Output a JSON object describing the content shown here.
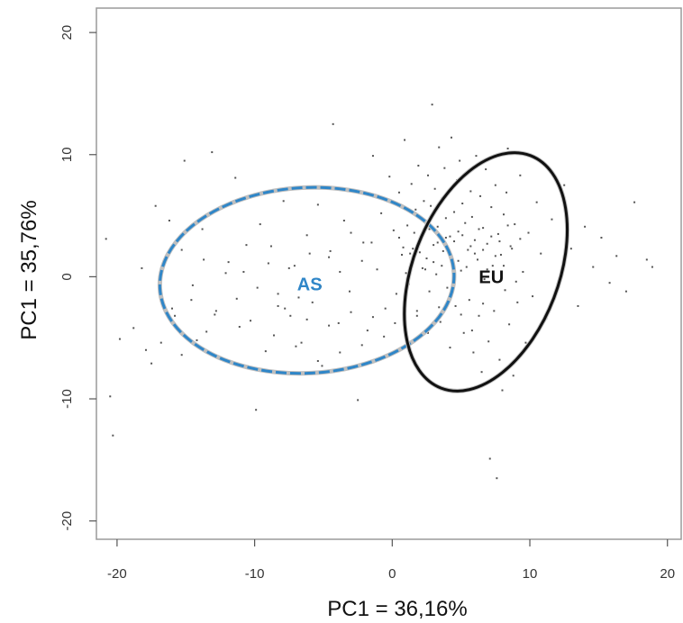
{
  "chart_data": {
    "type": "scatter",
    "title": "",
    "xlabel": "PC1 = 36,16%",
    "ylabel": "PC1 = 35,76%",
    "xlim": [
      -21.5,
      21
    ],
    "ylim": [
      -21.5,
      22
    ],
    "x_ticks": [
      -20,
      -10,
      0,
      10,
      20
    ],
    "y_ticks": [
      -20,
      -10,
      0,
      10,
      20
    ],
    "x_tick_labels": [
      "-20",
      "-10",
      "0",
      "10",
      "20"
    ],
    "y_tick_labels": [
      "-20",
      "-10",
      "0",
      "10",
      "20"
    ],
    "grid": false,
    "point_color": "#555555",
    "groups": [
      {
        "label": "AS",
        "color": "#2f86c8",
        "style": "dashed",
        "center": [
          -6.2,
          -0.3
        ],
        "rx": 10.7,
        "ry": 7.6,
        "rotation_deg": -3,
        "label_pos": [
          -6,
          -0.6
        ]
      },
      {
        "label": "EU",
        "color": "#111111",
        "style": "solid",
        "center": [
          6.8,
          0.4
        ],
        "rx": 5.3,
        "ry": 10.2,
        "rotation_deg": 21,
        "label_pos": [
          7.2,
          0
        ]
      }
    ],
    "points": [
      [
        -20.8,
        3.1
      ],
      [
        -20.5,
        -9.8
      ],
      [
        -20.3,
        -13
      ],
      [
        -19.8,
        -5.1
      ],
      [
        -18.8,
        -4.2
      ],
      [
        -18.2,
        0.7
      ],
      [
        -17.9,
        -6
      ],
      [
        -17.5,
        -7.1
      ],
      [
        -17.2,
        5.8
      ],
      [
        -16.8,
        -5.4
      ],
      [
        -16.2,
        4.6
      ],
      [
        -15.8,
        -3.2
      ],
      [
        -15.3,
        -6.4
      ],
      [
        -15.1,
        9.5
      ],
      [
        -14.6,
        -1.9
      ],
      [
        -14.2,
        -5.2
      ],
      [
        -13.8,
        3.9
      ],
      [
        -13.5,
        -4.5
      ],
      [
        -13.1,
        10.2
      ],
      [
        -12.8,
        -2.8
      ],
      [
        -12.4,
        -6.8
      ],
      [
        -11.9,
        1.2
      ],
      [
        -11.4,
        8.1
      ],
      [
        -11.1,
        -4.1
      ],
      [
        -10.8,
        0.4
      ],
      [
        -10.3,
        -3.6
      ],
      [
        -9.9,
        -10.9
      ],
      [
        -9.6,
        4.3
      ],
      [
        -9.2,
        -6.1
      ],
      [
        -8.8,
        2.5
      ],
      [
        -8.3,
        -1.4
      ],
      [
        -7.9,
        6.2
      ],
      [
        -7.4,
        -3.2
      ],
      [
        -7.1,
        0.9
      ],
      [
        -6.6,
        -5.4
      ],
      [
        -6.2,
        3.4
      ],
      [
        -5.8,
        -2.1
      ],
      [
        -5.4,
        5.9
      ],
      [
        -5.1,
        -7.3
      ],
      [
        -4.6,
        1.6
      ],
      [
        -4.3,
        12.5
      ],
      [
        -3.9,
        -3.8
      ],
      [
        -3.5,
        4.6
      ],
      [
        -3.1,
        -1.2
      ],
      [
        -2.8,
        7.1
      ],
      [
        -2.5,
        -10.1
      ],
      [
        -2.1,
        2.8
      ],
      [
        -1.8,
        -4.4
      ],
      [
        -1.4,
        9.9
      ],
      [
        -1.1,
        0.6
      ],
      [
        -0.8,
        5.2
      ],
      [
        -0.5,
        -2.6
      ],
      [
        -0.2,
        8.2
      ],
      [
        0.1,
        3.8
      ],
      [
        0.3,
        -1.4
      ],
      [
        0.5,
        6.9
      ],
      [
        0.7,
        1.8
      ],
      [
        0.9,
        11.2
      ],
      [
        1.1,
        4.2
      ],
      [
        1.2,
        -0.6
      ],
      [
        1.4,
        7.6
      ],
      [
        1.5,
        2.3
      ],
      [
        1.7,
        5.5
      ],
      [
        1.8,
        -2.8
      ],
      [
        1.9,
        9.1
      ],
      [
        2.1,
        3.1
      ],
      [
        2.2,
        0.7
      ],
      [
        2.3,
        6.2
      ],
      [
        2.4,
        4.6
      ],
      [
        2.5,
        1.5
      ],
      [
        2.6,
        8.3
      ],
      [
        2.7,
        -1.2
      ],
      [
        2.8,
        5.8
      ],
      [
        2.9,
        14.1
      ],
      [
        3,
        2.6
      ],
      [
        3.1,
        7.2
      ],
      [
        3.2,
        0.2
      ],
      [
        3.3,
        4.1
      ],
      [
        3.4,
        10.6
      ],
      [
        3.5,
        -3.7
      ],
      [
        3.6,
        6.4
      ],
      [
        3.7,
        2.1
      ],
      [
        3.8,
        8.9
      ],
      [
        3.9,
        4.8
      ],
      [
        4,
        -0.9
      ],
      [
        4.1,
        6.8
      ],
      [
        4.2,
        3.3
      ],
      [
        4.3,
        11.4
      ],
      [
        4.4,
        1.1
      ],
      [
        4.5,
        5.3
      ],
      [
        4.6,
        -2.4
      ],
      [
        4.7,
        7.9
      ],
      [
        4.8,
        3.7
      ],
      [
        4.9,
        9.5
      ],
      [
        5,
        0.5
      ],
      [
        5.1,
        6
      ],
      [
        5.2,
        -4.6
      ],
      [
        5.3,
        4.4
      ],
      [
        5.4,
        8.4
      ],
      [
        5.5,
        2.2
      ],
      [
        5.6,
        -1.9
      ],
      [
        5.7,
        7
      ],
      [
        5.8,
        4.9
      ],
      [
        5.9,
        -6.2
      ],
      [
        6,
        3
      ],
      [
        6.1,
        9.9
      ],
      [
        6.2,
        1.4
      ],
      [
        6.3,
        -3.2
      ],
      [
        6.4,
        6.6
      ],
      [
        6.5,
        -7.8
      ],
      [
        6.6,
        4
      ],
      [
        6.7,
        -0.2
      ],
      [
        6.8,
        8.8
      ],
      [
        6.9,
        2.7
      ],
      [
        7,
        -5.3
      ],
      [
        7.1,
        -14.9
      ],
      [
        7.2,
        5.7
      ],
      [
        7.3,
        0.9
      ],
      [
        7.4,
        -2.8
      ],
      [
        7.5,
        7.5
      ],
      [
        7.6,
        -16.5
      ],
      [
        7.7,
        3.5
      ],
      [
        7.8,
        -6.8
      ],
      [
        7.9,
        1.8
      ],
      [
        8,
        -9.3
      ],
      [
        8.1,
        5.1
      ],
      [
        8.2,
        -1.1
      ],
      [
        8.3,
        6.9
      ],
      [
        8.4,
        10.5
      ],
      [
        8.5,
        -3.9
      ],
      [
        8.6,
        2.5
      ],
      [
        8.8,
        -8.1
      ],
      [
        8.9,
        4.3
      ],
      [
        9.1,
        -2.1
      ],
      [
        9.3,
        8.3
      ],
      [
        9.5,
        0.4
      ],
      [
        9.7,
        -5.4
      ],
      [
        9.9,
        3.6
      ],
      [
        10.2,
        -1.6
      ],
      [
        10.5,
        6.1
      ],
      [
        10.8,
        1.9
      ],
      [
        11.2,
        -3.4
      ],
      [
        11.6,
        4.7
      ],
      [
        12,
        -0.6
      ],
      [
        12.5,
        7.5
      ],
      [
        13,
        2.3
      ],
      [
        13.5,
        -2.4
      ],
      [
        14,
        4.1
      ],
      [
        14.6,
        0.8
      ],
      [
        15.2,
        3.2
      ],
      [
        15.8,
        -0.5
      ],
      [
        16.3,
        1.7
      ],
      [
        17,
        -1.2
      ],
      [
        17.6,
        6.1
      ],
      [
        18.5,
        1.4
      ],
      [
        18.9,
        0.8
      ],
      [
        0.5,
        3.2
      ],
      [
        0.8,
        2.4
      ],
      [
        1.0,
        0.3
      ],
      [
        1.3,
        1.9
      ],
      [
        1.6,
        3.6
      ],
      [
        2.0,
        2.0
      ],
      [
        2.4,
        0.6
      ],
      [
        2.7,
        3.9
      ],
      [
        3.0,
        1.2
      ],
      [
        3.3,
        2.8
      ],
      [
        3.6,
        0.9
      ],
      [
        3.9,
        3.2
      ],
      [
        4.2,
        1.7
      ],
      [
        4.5,
        2.9
      ],
      [
        4.8,
        1.3
      ],
      [
        5.1,
        3.4
      ],
      [
        5.4,
        0.8
      ],
      [
        5.7,
        2.5
      ],
      [
        6.0,
        1.9
      ],
      [
        6.3,
        3.9
      ],
      [
        6.6,
        2.2
      ],
      [
        6.9,
        0.6
      ],
      [
        7.2,
        3.3
      ],
      [
        7.5,
        1.7
      ],
      [
        7.8,
        2.9
      ],
      [
        8.1,
        0.9
      ],
      [
        8.4,
        4.2
      ],
      [
        8.7,
        2.3
      ],
      [
        9.0,
        -0.4
      ],
      [
        9.3,
        3.1
      ],
      [
        -1.5,
        2.8
      ],
      [
        -2.2,
        1.3
      ],
      [
        -3.0,
        3.6
      ],
      [
        -3.8,
        0.4
      ],
      [
        -4.5,
        2.1
      ],
      [
        -5.2,
        -0.8
      ],
      [
        -6.0,
        1.9
      ],
      [
        -6.8,
        -1.7
      ],
      [
        -7.5,
        0.7
      ],
      [
        -8.3,
        -2.4
      ],
      [
        -9.0,
        1.1
      ],
      [
        -9.8,
        -0.9
      ],
      [
        -10.6,
        2.6
      ],
      [
        -11.3,
        -1.8
      ],
      [
        -12.1,
        0.3
      ],
      [
        -12.9,
        -3.1
      ],
      [
        -13.7,
        1.4
      ],
      [
        -14.5,
        -0.7
      ],
      [
        -15.3,
        2.2
      ],
      [
        -16.0,
        -2.6
      ],
      [
        0.2,
        -3.8
      ],
      [
        1.0,
        -5.1
      ],
      [
        1.8,
        -3.2
      ],
      [
        2.6,
        -4.6
      ],
      [
        3.4,
        -2.5
      ],
      [
        4.2,
        -5.8
      ],
      [
        5.0,
        -3.1
      ],
      [
        5.8,
        -4.4
      ],
      [
        6.6,
        -2.2
      ],
      [
        -0.6,
        -4.9
      ],
      [
        -1.4,
        -3.3
      ],
      [
        -2.2,
        -5.6
      ],
      [
        -3.0,
        -2.9
      ],
      [
        -3.8,
        -6.2
      ],
      [
        -4.6,
        -4.0
      ],
      [
        -5.4,
        -6.9
      ],
      [
        -6.2,
        -3.5
      ],
      [
        -7.0,
        -5.7
      ],
      [
        -7.8,
        -2.6
      ],
      [
        -8.6,
        -4.8
      ]
    ]
  }
}
